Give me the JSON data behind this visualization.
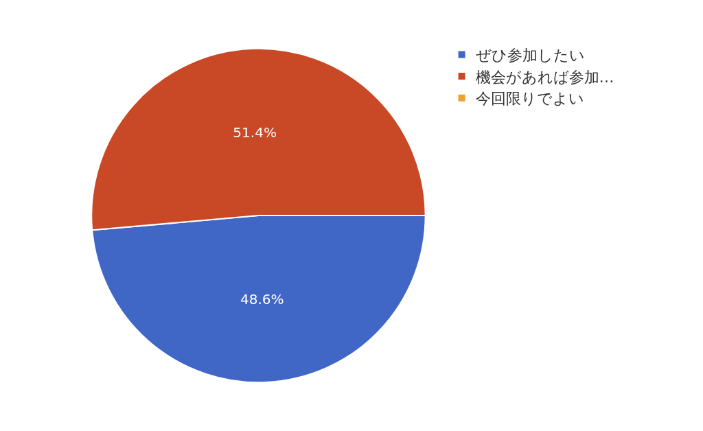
{
  "chart_data": {
    "type": "pie",
    "categories": [
      "ぜひ参加したい",
      "機会があれば参加…",
      "今回限りでよい"
    ],
    "values": [
      48.6,
      51.4,
      0
    ],
    "colors": [
      "#4066c6",
      "#c94826",
      "#f0a030"
    ],
    "value_labels": [
      "48.6%",
      "51.4%",
      null
    ],
    "legend": "top right"
  }
}
